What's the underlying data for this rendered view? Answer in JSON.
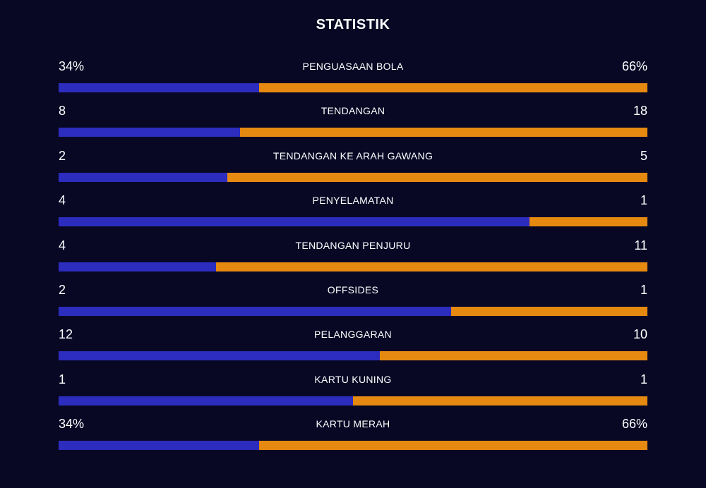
{
  "title": "STATISTIK",
  "colors": {
    "background": "#080825",
    "home": "#2c2cbe",
    "away": "#e68910"
  },
  "stats": [
    {
      "label": "PENGUASAAN BOLA",
      "home": "34%",
      "away": "66%",
      "home_share": 0.34
    },
    {
      "label": "TENDANGAN",
      "home": "8",
      "away": "18",
      "home_share": 0.308
    },
    {
      "label": "TENDANGAN KE ARAH GAWANG",
      "home": "2",
      "away": "5",
      "home_share": 0.286
    },
    {
      "label": "PENYELAMATAN",
      "home": "4",
      "away": "1",
      "home_share": 0.8
    },
    {
      "label": "TENDANGAN PENJURU",
      "home": "4",
      "away": "11",
      "home_share": 0.267
    },
    {
      "label": "OFFSIDES",
      "home": "2",
      "away": "1",
      "home_share": 0.667
    },
    {
      "label": "PELANGGARAN",
      "home": "12",
      "away": "10",
      "home_share": 0.545
    },
    {
      "label": "KARTU KUNING",
      "home": "1",
      "away": "1",
      "home_share": 0.5
    },
    {
      "label": "KARTU MERAH",
      "home": "34%",
      "away": "66%",
      "home_share": 0.34
    }
  ]
}
